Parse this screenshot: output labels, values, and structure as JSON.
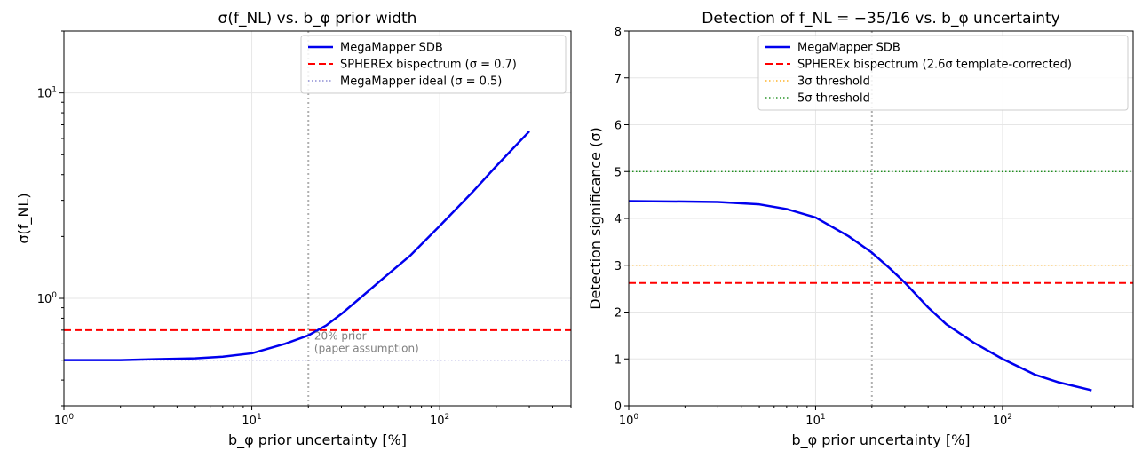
{
  "chart_data": [
    {
      "type": "line",
      "title": "σ(f_NL) vs. b_φ prior width",
      "xlabel": "b_φ prior uncertainty [%]",
      "ylabel": "σ(f_NL)",
      "xscale": "log",
      "yscale": "log",
      "xlim": [
        1,
        500
      ],
      "ylim": [
        0.3,
        20
      ],
      "xticks": [
        1,
        10,
        100
      ],
      "yticks": [
        1,
        10
      ],
      "grid": true,
      "legend": "top-right",
      "series": [
        {
          "name": "MegaMapper SDB",
          "color": "#0000ee",
          "style": "solid",
          "x": [
            1,
            2,
            3,
            5,
            7,
            10,
            15,
            20,
            25,
            30,
            40,
            50,
            70,
            100,
            150,
            200,
            300
          ],
          "y": [
            0.5,
            0.5,
            0.505,
            0.51,
            0.52,
            0.54,
            0.6,
            0.66,
            0.74,
            0.84,
            1.05,
            1.25,
            1.62,
            2.25,
            3.3,
            4.4,
            6.5
          ]
        },
        {
          "name": "SPHEREx bispectrum (σ = 0.7)",
          "color": "#ff0000",
          "style": "dashed",
          "x": [
            1,
            500
          ],
          "y": [
            0.7,
            0.7
          ]
        },
        {
          "name": "MegaMapper ideal (σ = 0.5)",
          "color": "#7777cc",
          "style": "dotted",
          "x": [
            1,
            500
          ],
          "y": [
            0.5,
            0.5
          ]
        }
      ],
      "vline": {
        "x": 20,
        "color": "#b0b0b0"
      },
      "annotation": {
        "x": 21.5,
        "y": 0.63,
        "lines": [
          "20% prior",
          "(paper assumption)"
        ]
      }
    },
    {
      "type": "line",
      "title": "Detection of f_NL = −35/16 vs. b_φ uncertainty",
      "xlabel": "b_φ prior uncertainty [%]",
      "ylabel": "Detection significance (σ)",
      "xscale": "log",
      "yscale": "linear",
      "xlim": [
        1,
        500
      ],
      "ylim": [
        0,
        8
      ],
      "xticks": [
        1,
        10,
        100
      ],
      "yticks": [
        0,
        1,
        2,
        3,
        4,
        5,
        6,
        7,
        8
      ],
      "grid": true,
      "legend": "top-right",
      "series": [
        {
          "name": "MegaMapper SDB",
          "color": "#0000ee",
          "style": "solid",
          "x": [
            1,
            2,
            3,
            5,
            7,
            10,
            15,
            20,
            25,
            30,
            40,
            50,
            70,
            100,
            150,
            200,
            300
          ],
          "y": [
            4.37,
            4.36,
            4.35,
            4.3,
            4.2,
            4.02,
            3.62,
            3.27,
            2.93,
            2.63,
            2.1,
            1.74,
            1.35,
            1.0,
            0.66,
            0.5,
            0.33
          ]
        },
        {
          "name": "SPHEREx bispectrum (2.6σ template-corrected)",
          "color": "#ff0000",
          "style": "dashed",
          "x": [
            1,
            500
          ],
          "y": [
            2.62,
            2.62
          ]
        },
        {
          "name": "3σ threshold",
          "color": "#ffa500",
          "style": "dotted",
          "x": [
            1,
            500
          ],
          "y": [
            3,
            3
          ]
        },
        {
          "name": "5σ threshold",
          "color": "#008000",
          "style": "dotted",
          "x": [
            1,
            500
          ],
          "y": [
            5,
            5
          ]
        }
      ],
      "vline": {
        "x": 20,
        "color": "#b0b0b0"
      }
    }
  ]
}
